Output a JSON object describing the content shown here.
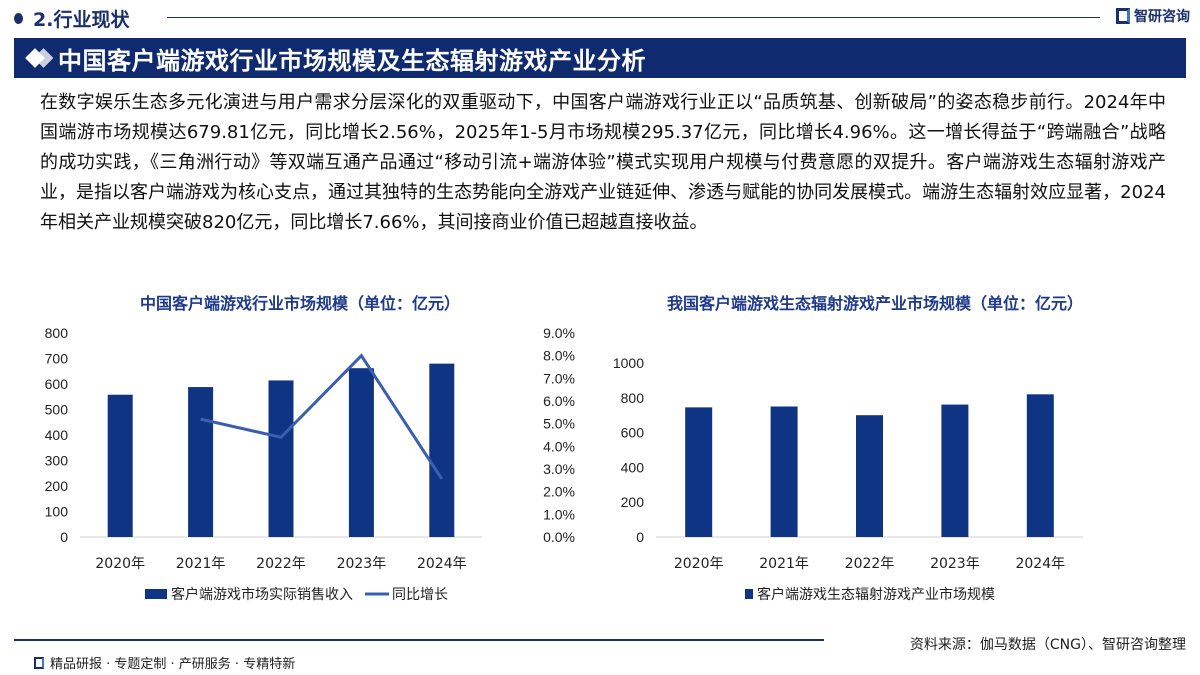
{
  "section": {
    "title": "2.行业现状"
  },
  "brand": {
    "name": "智研咨询"
  },
  "banner": {
    "title": "中国客户端游戏行业市场规模及生态辐射游戏产业分析"
  },
  "paragraph": "在数字娱乐生态多元化演进与用户需求分层深化的双重驱动下，中国客户端游戏行业正以“品质筑基、创新破局”的姿态稳步前行。2024年中国端游市场规模达679.81亿元，同比增长2.56%，2025年1-5月市场规模295.37亿元，同比增长4.96%。这一增长得益于“跨端融合”战略的成功实践，《三角洲行动》等双端互通产品通过“移动引流+端游体验”模式实现用户规模与付费意愿的双提升。客户端游戏生态辐射游戏产业，是指以客户端游戏为核心支点，通过其独特的生态势能向全游戏产业链延伸、渗透与赋能的协同发展模式。端游生态辐射效应显著，2024年相关产业规模突破820亿元，同比增长7.66%，其间接商业价值已超越直接收益。",
  "footer": {
    "source": "资料来源：伽马数据（CNG）、智研咨询整理",
    "slogan": "精品研报 · 专题定制 · 产研服务 · 专精特新"
  },
  "chart_data": [
    {
      "type": "bar+line",
      "title": "中国客户端游戏行业市场规模（单位：亿元）",
      "categories": [
        "2020年",
        "2021年",
        "2022年",
        "2023年",
        "2024年"
      ],
      "y_ticks": [
        "0",
        "100",
        "200",
        "300",
        "400",
        "500",
        "600",
        "700",
        "800"
      ],
      "y2_ticks": [
        "0.0%",
        "1.0%",
        "2.0%",
        "3.0%",
        "4.0%",
        "5.0%",
        "6.0%",
        "7.0%",
        "8.0%",
        "9.0%"
      ],
      "ylim": [
        0,
        800
      ],
      "y2lim": [
        0,
        9
      ],
      "series": [
        {
          "name": "客户端游戏市场实际销售收入",
          "type": "bar",
          "values": [
            558,
            588,
            614,
            662,
            679.81
          ],
          "color": "#0f3483"
        },
        {
          "name": "同比增长",
          "type": "line",
          "axis": "right",
          "values": [
            null,
            5.2,
            4.4,
            8.0,
            2.56
          ],
          "color": "#3a5fad"
        }
      ],
      "legend": "bottom",
      "grid": false
    },
    {
      "type": "bar",
      "title": "我国客户端游戏生态辐射游戏产业市场规模（单位：亿元）",
      "categories": [
        "2020年",
        "2021年",
        "2022年",
        "2023年",
        "2024年"
      ],
      "y_ticks": [
        "0",
        "200",
        "400",
        "600",
        "800",
        "1000"
      ],
      "ylim": [
        0,
        1000
      ],
      "series": [
        {
          "name": "客户端游戏生态辐射游戏产业市场规模",
          "type": "bar",
          "values": [
            745,
            750,
            700,
            761,
            820
          ],
          "color": "#0f3483"
        }
      ],
      "legend": "bottom",
      "grid": false
    }
  ]
}
